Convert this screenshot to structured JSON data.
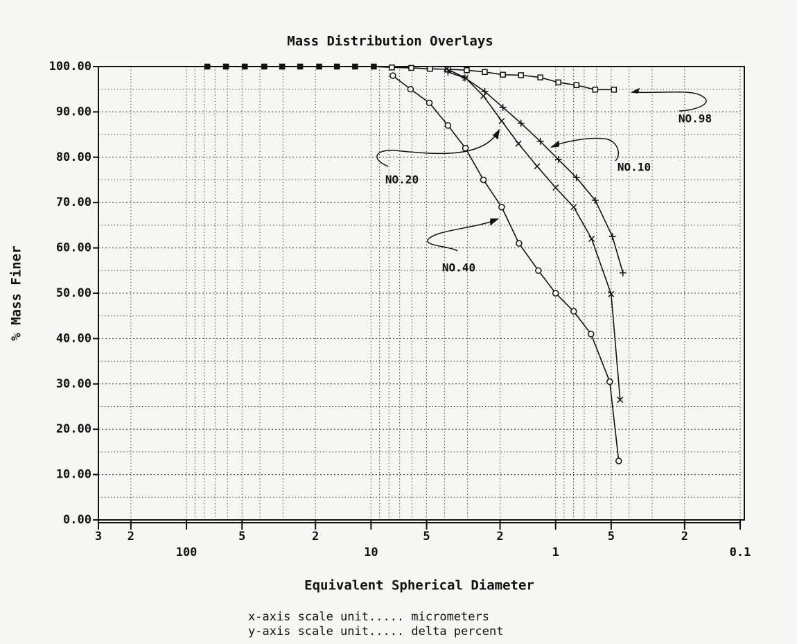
{
  "chart_data": {
    "type": "line",
    "title": "Mass Distribution Overlays",
    "x_label": "Equivalent Spherical Diameter",
    "y_label": "% Mass Finer",
    "notes": [
      "x-axis scale unit..... micrometers",
      "y-axis scale unit..... delta percent"
    ],
    "x_scale": "log",
    "x_reversed": true,
    "grid": true,
    "xlim": [
      300,
      0.1
    ],
    "ylim": [
      0,
      100
    ],
    "xticks": [
      {
        "value": 300,
        "label": "3"
      },
      {
        "value": 200,
        "label": "2"
      },
      100,
      {
        "value": 50,
        "label": "5"
      },
      {
        "value": 20,
        "label": "2"
      },
      10,
      {
        "value": 5,
        "label": "5"
      },
      {
        "value": 2,
        "label": "2"
      },
      1,
      {
        "value": 0.5,
        "label": "5"
      },
      {
        "value": 0.2,
        "label": "2"
      },
      0.1
    ],
    "yticks": [
      {
        "value": 0,
        "label": "0.00"
      },
      {
        "value": 10,
        "label": "10.00"
      },
      {
        "value": 20,
        "label": "20.00"
      },
      {
        "value": 30,
        "label": "30.00"
      },
      {
        "value": 40,
        "label": "40.00"
      },
      {
        "value": 50,
        "label": "50.00"
      },
      {
        "value": 60,
        "label": "60.00"
      },
      {
        "value": 70,
        "label": "70.00"
      },
      {
        "value": 80,
        "label": "80.00"
      },
      {
        "value": 90,
        "label": "90.00"
      },
      {
        "value": 100,
        "label": "100.00"
      }
    ],
    "series": [
      {
        "name": "NO.98",
        "color": "#111111",
        "marker": "square",
        "x": [
          77.1,
          61.1,
          48.3,
          37.9,
          30.3,
          24.2,
          19.1,
          15.3,
          12.2,
          9.66,
          7.71,
          6.05,
          4.79,
          3.83,
          3.03,
          2.42,
          1.93,
          1.54,
          1.21,
          0.966,
          0.771,
          0.61,
          0.483
        ],
        "values": [
          100,
          100,
          100,
          100,
          100,
          100,
          100,
          100,
          100,
          100,
          99.8,
          99.7,
          99.5,
          99.4,
          99.2,
          98.8,
          98.2,
          98.1,
          97.6,
          96.5,
          95.9,
          94.9,
          94.9
        ]
      },
      {
        "name": "NO.10",
        "color": "#111111",
        "marker": "plus",
        "x": [
          3.83,
          3.1,
          2.42,
          1.93,
          1.54,
          1.21,
          0.966,
          0.771,
          0.61,
          0.492,
          0.432
        ],
        "values": [
          98.8,
          97.5,
          94.5,
          91,
          87.5,
          83.5,
          79.5,
          75.5,
          70.5,
          62.5,
          54.5
        ]
      },
      {
        "name": "NO.20",
        "color": "#111111",
        "marker": "cross",
        "x": [
          3.89,
          3.08,
          2.46,
          1.96,
          1.59,
          1.26,
          1.0,
          0.798,
          0.638,
          0.5,
          0.447
        ],
        "values": [
          99.5,
          97.5,
          93.5,
          88,
          83,
          78,
          73.3,
          69,
          62,
          49.8,
          26.5
        ]
      },
      {
        "name": "NO.40",
        "color": "#111111",
        "marker": "circle",
        "x": [
          7.62,
          6.11,
          4.83,
          3.83,
          3.08,
          2.46,
          1.96,
          1.58,
          1.24,
          1.0,
          0.798,
          0.643,
          0.509,
          0.455
        ],
        "values": [
          98,
          95,
          92,
          87,
          82,
          75,
          69,
          61,
          55,
          50,
          46,
          41,
          30.5,
          13
        ]
      }
    ]
  }
}
